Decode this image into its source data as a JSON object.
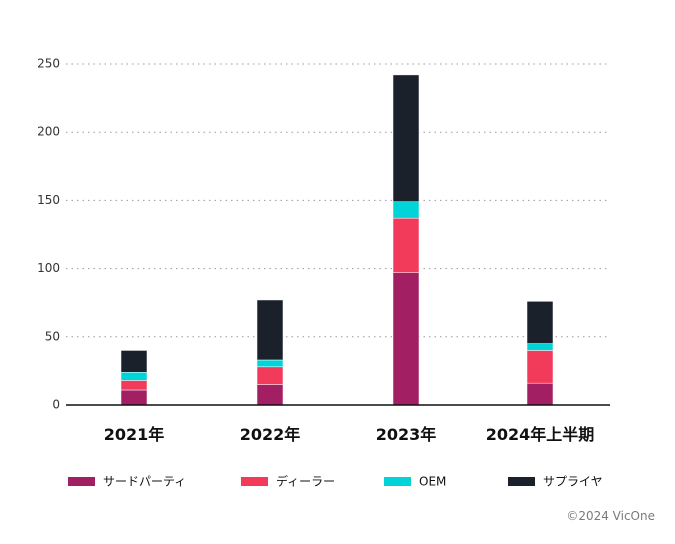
{
  "chart_data": {
    "type": "bar",
    "stacked": true,
    "categories": [
      "2021年",
      "2022年",
      "2023年",
      "2024年上半期"
    ],
    "series": [
      {
        "name": "サードパーティ",
        "color": "#a31f63",
        "values": [
          11,
          15,
          97,
          16
        ]
      },
      {
        "name": "ディーラー",
        "color": "#f23b5a",
        "values": [
          7,
          13,
          40,
          24
        ]
      },
      {
        "name": "OEM",
        "color": "#00d4d8",
        "values": [
          6,
          5,
          12,
          5
        ]
      },
      {
        "name": "サプライヤ",
        "color": "#1b212b",
        "values": [
          16,
          44,
          93,
          31
        ]
      }
    ],
    "yticks": [
      0,
      50,
      100,
      150,
      200,
      250
    ],
    "ylim": [
      0,
      250
    ],
    "grid": true,
    "legend_position": "bottom",
    "title": "",
    "xlabel": "",
    "ylabel": ""
  },
  "credit": "©2024 VicOne"
}
